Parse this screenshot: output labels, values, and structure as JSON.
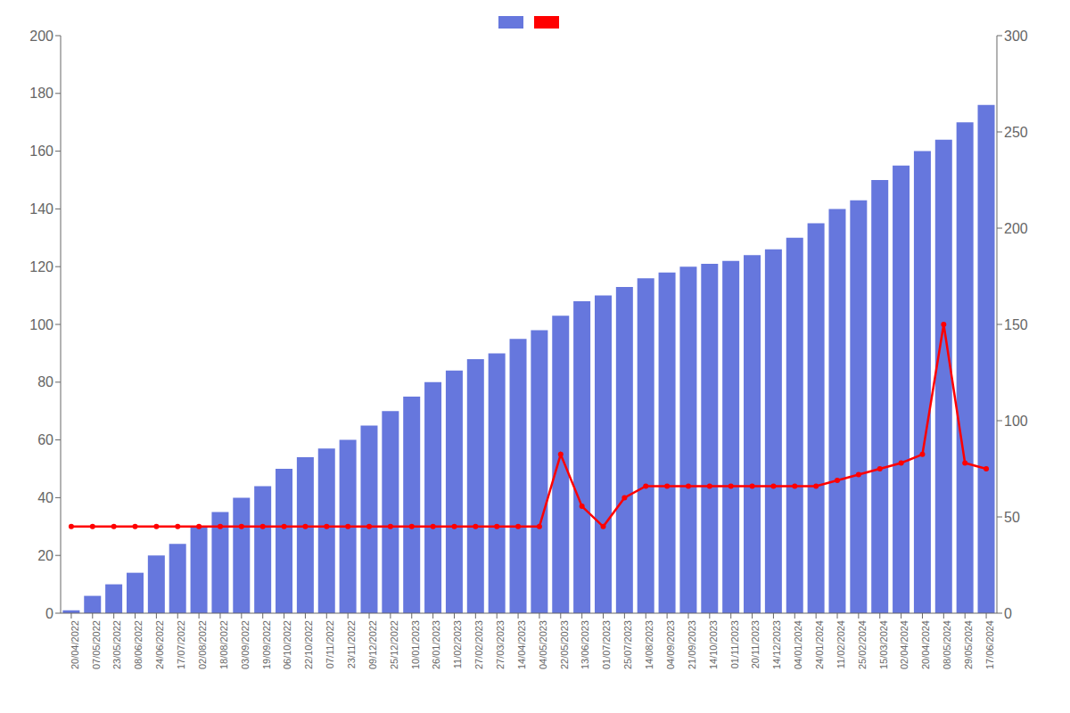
{
  "chart_data": {
    "type": "bar",
    "categories": [
      "20/04/2022",
      "07/05/2022",
      "23/05/2022",
      "08/06/2022",
      "24/06/2022",
      "17/07/2022",
      "02/08/2022",
      "18/08/2022",
      "03/09/2022",
      "19/09/2022",
      "06/10/2022",
      "22/10/2022",
      "07/11/2022",
      "23/11/2022",
      "09/12/2022",
      "25/12/2022",
      "10/01/2023",
      "26/01/2023",
      "11/02/2023",
      "27/02/2023",
      "27/03/2023",
      "14/04/2023",
      "04/05/2023",
      "22/05/2023",
      "13/06/2023",
      "01/07/2023",
      "25/07/2023",
      "14/08/2023",
      "04/09/2023",
      "21/09/2023",
      "14/10/2023",
      "01/11/2023",
      "20/11/2023",
      "14/12/2023",
      "04/01/2024",
      "24/01/2024",
      "11/02/2024",
      "25/02/2024",
      "15/03/2024",
      "02/04/2024",
      "20/04/2024",
      "08/05/2024",
      "29/05/2024",
      "17/06/2024"
    ],
    "series": [
      {
        "type": "bar",
        "color": "#6677dd",
        "values": [
          1,
          6,
          10,
          14,
          20,
          24,
          30,
          35,
          40,
          44,
          50,
          54,
          57,
          60,
          65,
          70,
          75,
          80,
          84,
          88,
          90,
          95,
          98,
          103,
          108,
          110,
          113,
          116,
          118,
          120,
          121,
          122,
          124,
          126,
          130,
          135,
          140,
          143,
          150,
          155,
          160,
          164,
          170,
          176
        ]
      },
      {
        "type": "line",
        "color": "#ff0000",
        "marker": "circle",
        "values": [
          30,
          30,
          30,
          30,
          30,
          30,
          30,
          30,
          30,
          30,
          30,
          30,
          30,
          30,
          30,
          30,
          30,
          30,
          30,
          30,
          30,
          30,
          30,
          55,
          37,
          30,
          40,
          44,
          44,
          44,
          44,
          44,
          44,
          44,
          44,
          44,
          46,
          48,
          50,
          52,
          55,
          100,
          52,
          50
        ]
      }
    ],
    "ylim": [
      0,
      200
    ],
    "yticks": [
      0,
      20,
      40,
      60,
      80,
      100,
      120,
      140,
      160,
      180,
      200
    ],
    "y2lim": [
      0,
      300
    ],
    "y2ticks": [
      0,
      50,
      100,
      150,
      200,
      250,
      300
    ],
    "grid": false,
    "legend": "top"
  }
}
